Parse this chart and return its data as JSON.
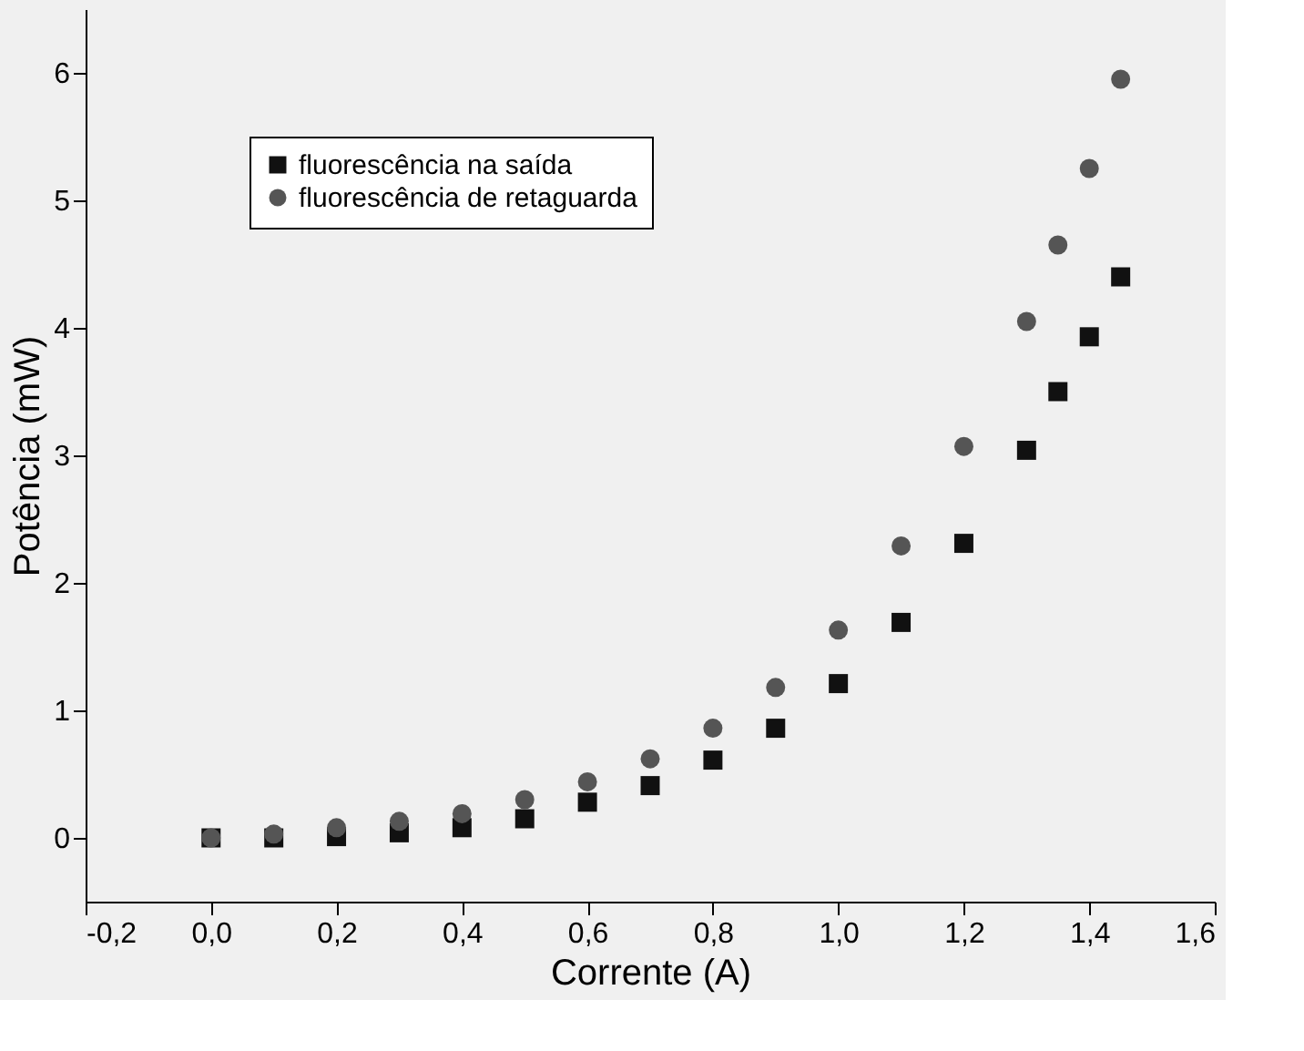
{
  "chart_data": {
    "type": "scatter",
    "xlabel": "Corrente (A)",
    "ylabel": "Potência (mW)",
    "x": [
      0,
      0.1,
      0.2,
      0.3,
      0.4,
      0.5,
      0.6,
      0.7,
      0.8,
      0.9,
      1.0,
      1.1,
      1.2,
      1.3,
      1.35,
      1.4,
      1.45
    ],
    "series": [
      {
        "name": "fluorescência na saída",
        "color": "#111111",
        "marker": "square",
        "values": [
          0,
          0,
          0.01,
          0.04,
          0.08,
          0.15,
          0.28,
          0.41,
          0.61,
          0.86,
          1.21,
          1.69,
          2.31,
          3.04,
          3.5,
          3.93,
          4.4
        ]
      },
      {
        "name": "fluorescência de retaguarda",
        "color": "#555555",
        "marker": "circle",
        "values": [
          0,
          0.03,
          0.08,
          0.13,
          0.19,
          0.3,
          0.44,
          0.62,
          0.86,
          1.18,
          1.63,
          2.29,
          3.07,
          4.05,
          4.65,
          5.25,
          5.95
        ]
      }
    ],
    "xlim": [
      -0.2,
      1.6
    ],
    "xticks": [
      {
        "value": -0.2,
        "label": "-0,2"
      },
      {
        "value": 0,
        "label": "0,0"
      },
      {
        "value": 0.2,
        "label": "0,2"
      },
      {
        "value": 0.4,
        "label": "0,4"
      },
      {
        "value": 0.6,
        "label": "0,6"
      },
      {
        "value": 0.8,
        "label": "0,8"
      },
      {
        "value": 1.0,
        "label": "1,0"
      },
      {
        "value": 1.2,
        "label": "1,2"
      },
      {
        "value": 1.4,
        "label": "1,4"
      },
      {
        "value": 1.6,
        "label": "1,6"
      }
    ],
    "ylim": [
      -0.5,
      6.5
    ],
    "yticks": [
      0,
      1,
      2,
      3,
      4,
      5,
      6
    ],
    "grid": false,
    "legend": "top left"
  }
}
